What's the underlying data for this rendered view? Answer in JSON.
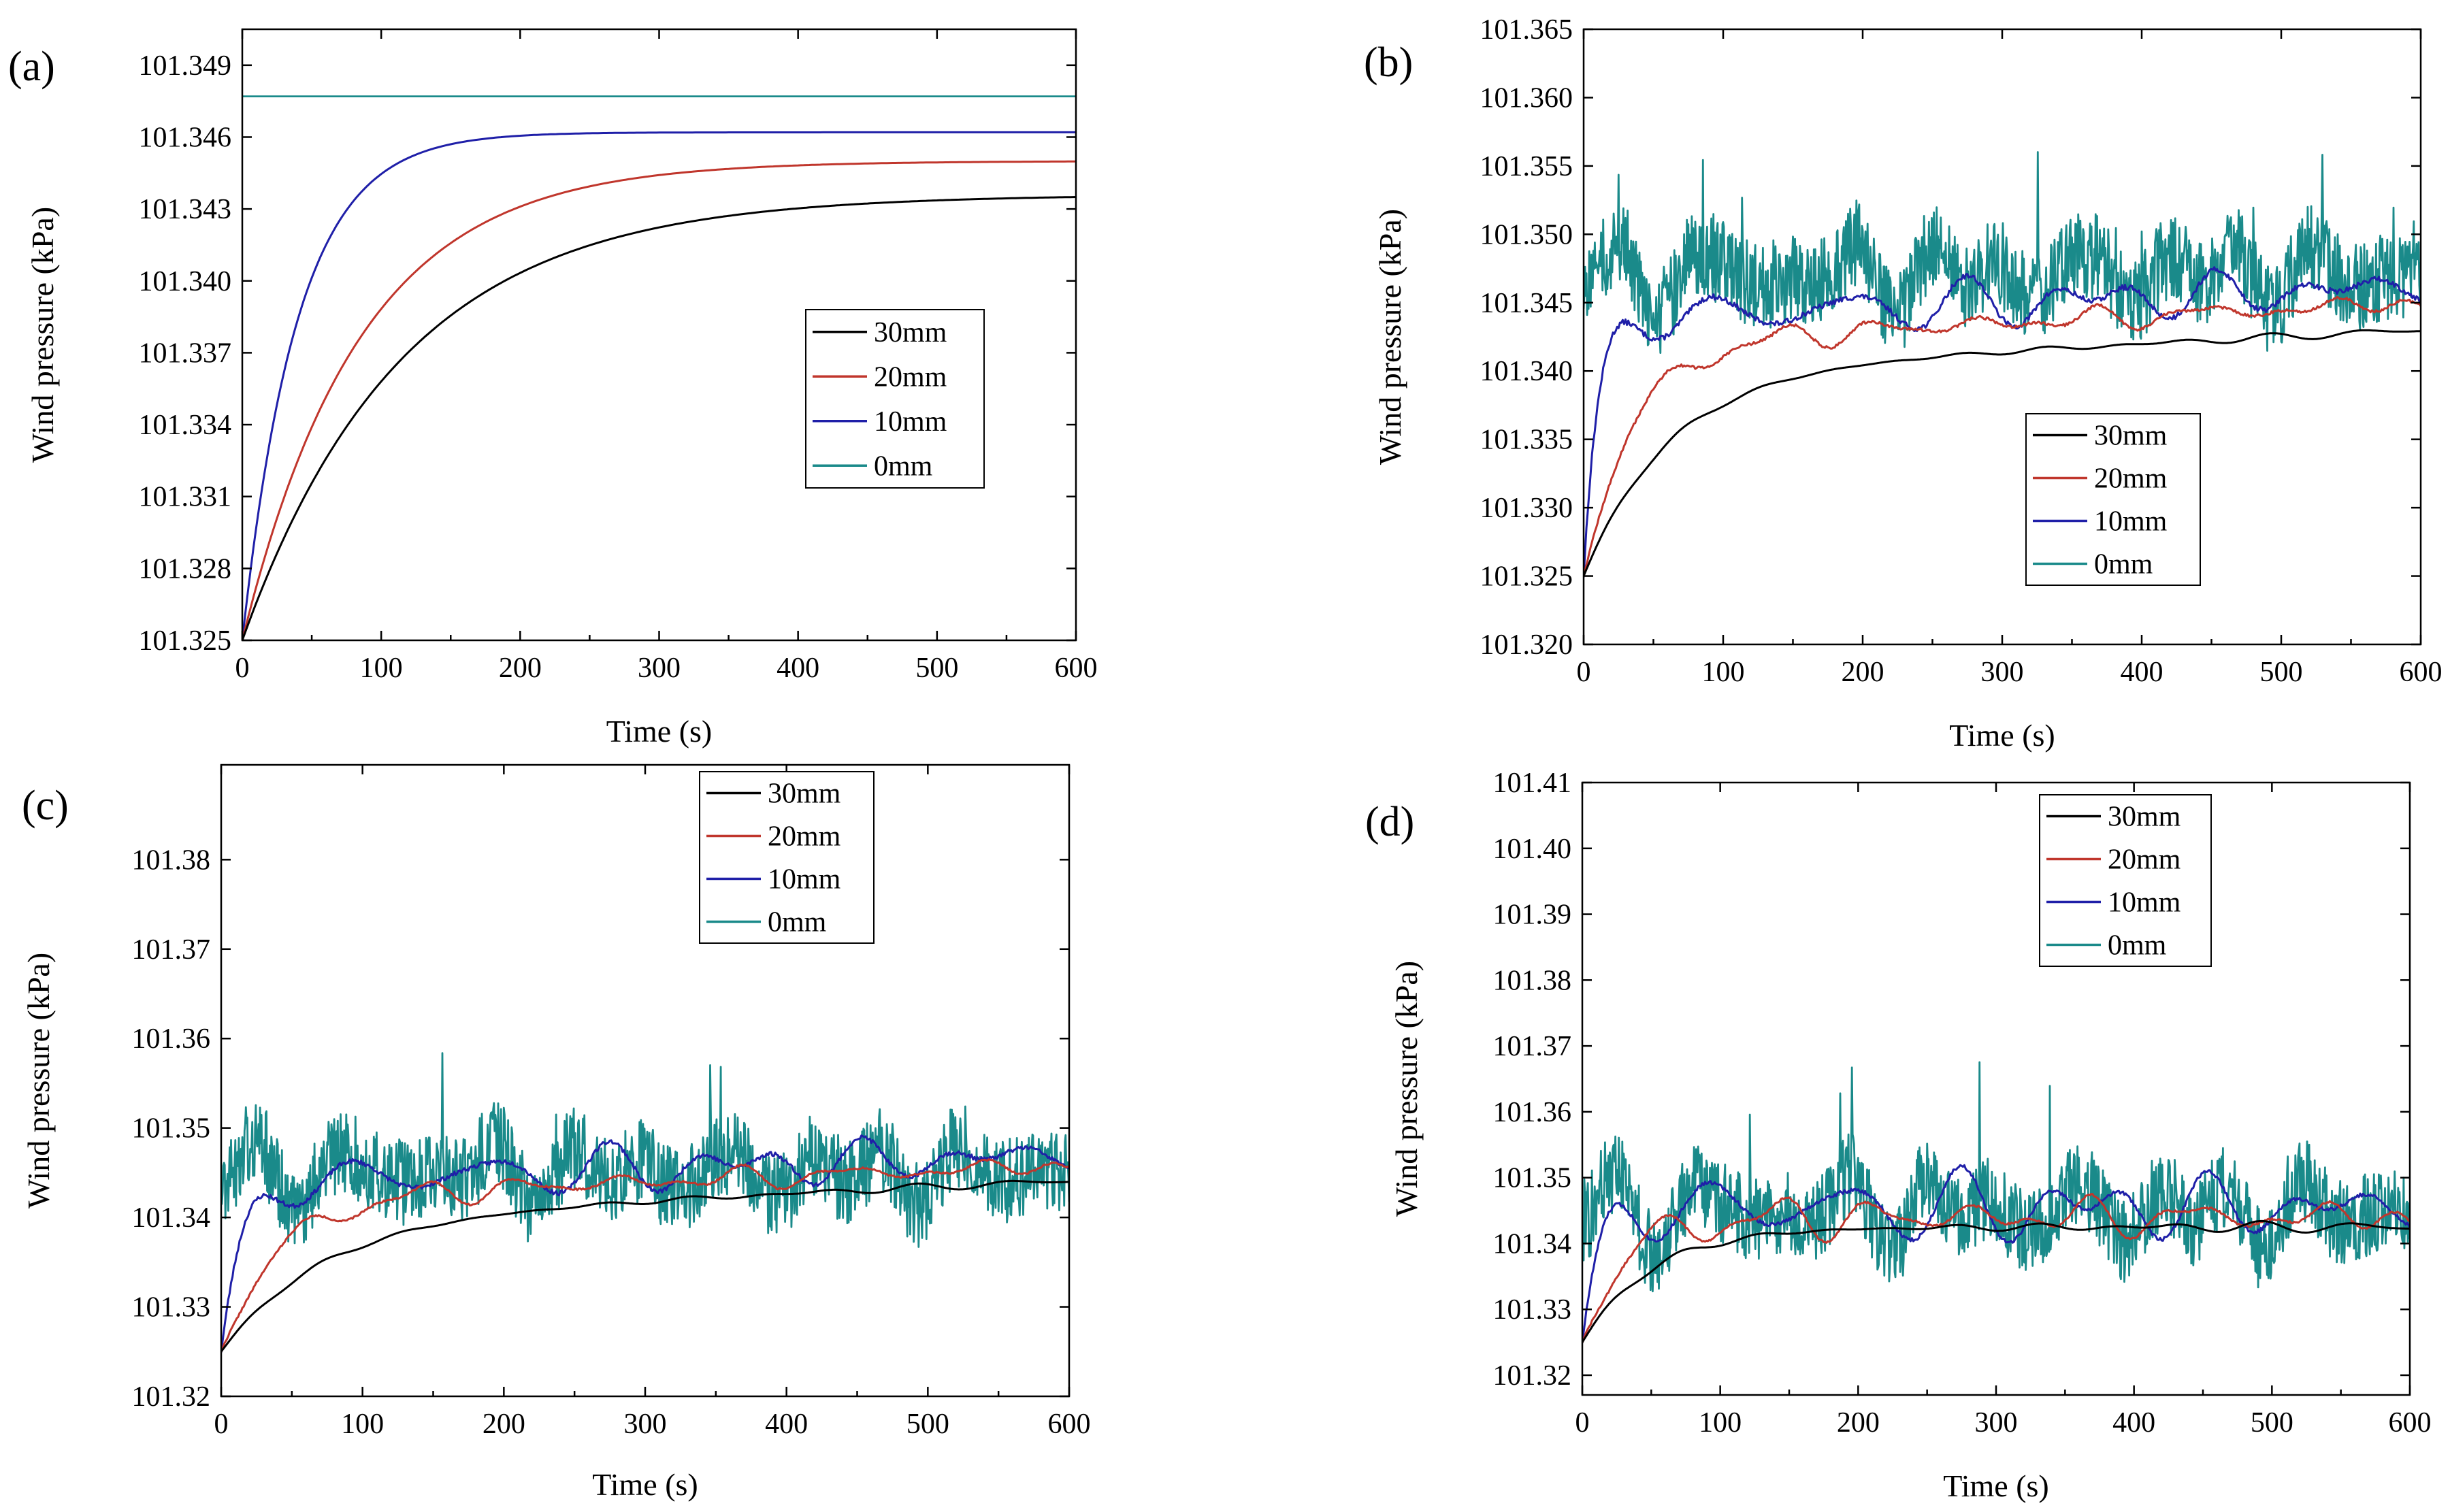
{
  "colors": {
    "s30": "#000000",
    "s20": "#c0362c",
    "s10": "#1f1fa8",
    "s0": "#1a8a8a"
  },
  "chart_data": [
    {
      "panel": "(a)",
      "type": "line",
      "xlabel": "Time (s)",
      "ylabel": "Wind pressure  (kPa)",
      "xlim": [
        0,
        600
      ],
      "ylim": [
        101.325,
        101.3505
      ],
      "xticks": [
        0,
        100,
        200,
        300,
        400,
        500,
        600
      ],
      "yticks": [
        101.325,
        101.328,
        101.331,
        101.334,
        101.337,
        101.34,
        101.343,
        101.346,
        101.349
      ],
      "ytick_labels": [
        "101.325",
        "101.328",
        "101.331",
        "101.334",
        "101.337",
        "101.340",
        "101.343",
        "101.346",
        "101.349"
      ],
      "legend": [
        "30mm",
        "20mm",
        "10mm",
        "0mm"
      ],
      "legend_position": "center-right",
      "series": [
        {
          "name": "30mm",
          "model": "smooth",
          "start": 101.325,
          "end": 101.3436,
          "tau": 115
        },
        {
          "name": "20mm",
          "model": "smooth",
          "start": 101.325,
          "end": 101.345,
          "tau": 85
        },
        {
          "name": "10mm",
          "model": "smooth",
          "start": 101.325,
          "end": 101.3462,
          "tau": 40
        },
        {
          "name": "0mm",
          "model": "flat",
          "value": 101.3477
        }
      ]
    },
    {
      "panel": "(b)",
      "type": "line",
      "xlabel": "Time (s)",
      "ylabel": "Wind pressure  (kPa)",
      "xlim": [
        0,
        600
      ],
      "ylim": [
        101.32,
        101.365
      ],
      "xticks": [
        0,
        100,
        200,
        300,
        400,
        500,
        600
      ],
      "yticks": [
        101.32,
        101.325,
        101.33,
        101.335,
        101.34,
        101.345,
        101.35,
        101.355,
        101.36,
        101.365
      ],
      "ytick_labels": [
        "101.320",
        "101.325",
        "101.330",
        "101.335",
        "101.340",
        "101.345",
        "101.350",
        "101.355",
        "101.360",
        "101.365"
      ],
      "legend": [
        "30mm",
        "20mm",
        "10mm",
        "0mm"
      ],
      "legend_position": "lower-center",
      "series": [
        {
          "name": "30mm",
          "model": "rise",
          "start": 101.325,
          "level": 101.3415,
          "slope": 5e-06,
          "tau": 60,
          "osc": 0.0004,
          "noise": 0.0,
          "seed": 11
        },
        {
          "name": "20mm",
          "model": "rise",
          "start": 101.325,
          "level": 101.3435,
          "slope": 5e-06,
          "tau": 35,
          "osc": 0.001,
          "noise": 0.0002,
          "seed": 12
        },
        {
          "name": "10mm",
          "model": "rise",
          "start": 101.325,
          "level": 101.345,
          "slope": 4e-06,
          "tau": 10,
          "osc": 0.002,
          "noise": 0.0004,
          "seed": 13
        },
        {
          "name": "0mm",
          "model": "noisy",
          "level": 101.347,
          "osc": 0.0035,
          "noise": 0.004,
          "seed": 14
        }
      ]
    },
    {
      "panel": "(c)",
      "type": "line",
      "xlabel": "Time (s)",
      "ylabel": "Wind pressure  (kPa)",
      "xlim": [
        0,
        600
      ],
      "ylim": [
        101.32,
        101.3906
      ],
      "xticks": [
        0,
        100,
        200,
        300,
        400,
        500,
        600
      ],
      "yticks": [
        101.32,
        101.33,
        101.34,
        101.35,
        101.36,
        101.37,
        101.38
      ],
      "ytick_labels": [
        "101.32",
        "101.33",
        "101.34",
        "101.35",
        "101.36",
        "101.37",
        "101.38"
      ],
      "legend": [
        "30mm",
        "20mm",
        "10mm",
        "0mm"
      ],
      "legend_position": "top-center",
      "series": [
        {
          "name": "30mm",
          "model": "rise",
          "start": 101.325,
          "level": 101.342,
          "slope": 7e-06,
          "tau": 70,
          "osc": 0.0006,
          "noise": 0.0,
          "seed": 21
        },
        {
          "name": "20mm",
          "model": "rise",
          "start": 101.325,
          "level": 101.344,
          "slope": 6e-06,
          "tau": 40,
          "osc": 0.0015,
          "noise": 0.0002,
          "seed": 22
        },
        {
          "name": "10mm",
          "model": "rise",
          "start": 101.325,
          "level": 101.3455,
          "slope": 5e-06,
          "tau": 15,
          "osc": 0.003,
          "noise": 0.0005,
          "seed": 23
        },
        {
          "name": "0mm",
          "model": "noisy",
          "level": 101.345,
          "osc": 0.005,
          "noise": 0.006,
          "seed": 24
        }
      ]
    },
    {
      "panel": "(d)",
      "type": "line",
      "xlabel": "Time (s)",
      "ylabel": "Wind pressure  (kPa)",
      "xlim": [
        0,
        600
      ],
      "ylim": [
        101.317,
        101.41
      ],
      "xticks": [
        0,
        100,
        200,
        300,
        400,
        500,
        600
      ],
      "yticks": [
        101.32,
        101.33,
        101.34,
        101.35,
        101.36,
        101.37,
        101.38,
        101.39,
        101.4,
        101.41
      ],
      "ytick_labels": [
        "101.32",
        "101.33",
        "101.34",
        "101.35",
        "101.36",
        "101.37",
        "101.38",
        "101.39",
        "101.40",
        "101.41"
      ],
      "legend": [
        "30mm",
        "20mm",
        "10mm",
        "0mm"
      ],
      "legend_position": "top-center",
      "series": [
        {
          "name": "30mm",
          "model": "rise",
          "start": 101.325,
          "level": 101.3425,
          "slope": 0.0,
          "tau": 50,
          "osc": 0.0012,
          "noise": 0.0,
          "seed": 31
        },
        {
          "name": "20mm",
          "model": "rise",
          "start": 101.325,
          "level": 101.344,
          "slope": 0.0,
          "tau": 30,
          "osc": 0.0035,
          "noise": 0.0003,
          "seed": 32
        },
        {
          "name": "10mm",
          "model": "rise",
          "start": 101.325,
          "level": 101.3455,
          "slope": 0.0,
          "tau": 12,
          "osc": 0.006,
          "noise": 0.0006,
          "seed": 33
        },
        {
          "name": "0mm",
          "model": "noisy",
          "level": 101.345,
          "osc": 0.008,
          "noise": 0.008,
          "seed": 34
        }
      ]
    }
  ]
}
